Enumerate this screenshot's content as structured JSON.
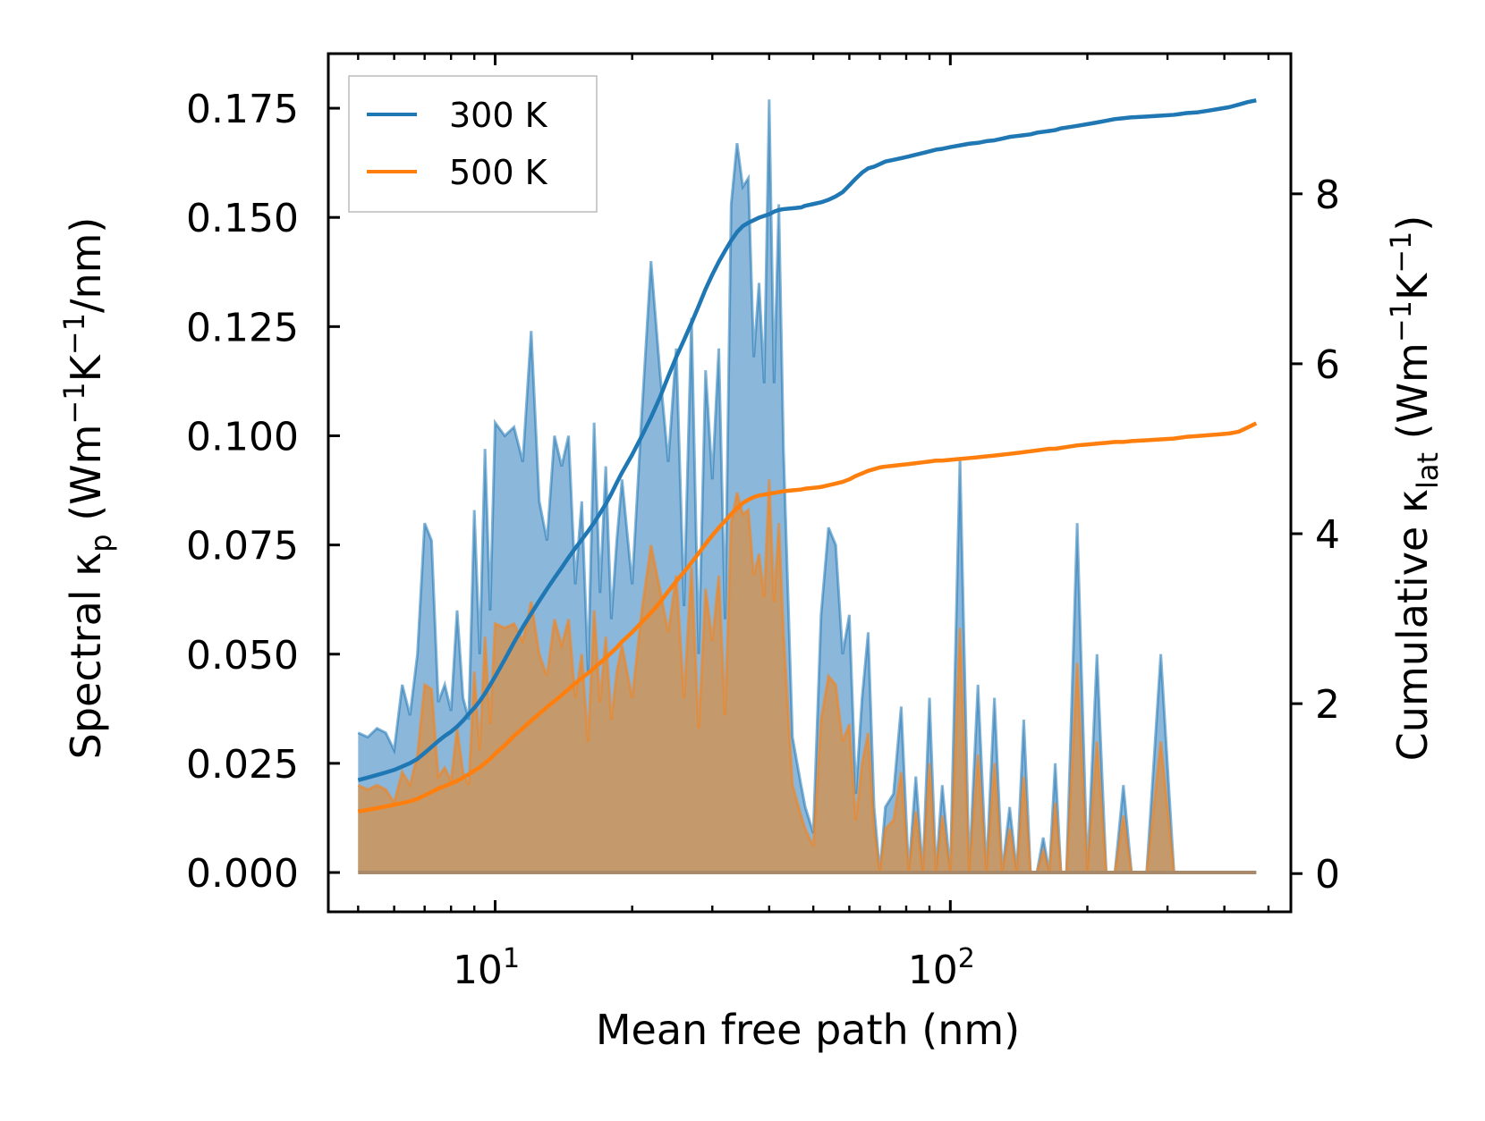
{
  "chart_data": {
    "type": "area-line-dual-axis",
    "title": "",
    "xlabel": "Mean free path (nm)",
    "ylabel_left_parts": [
      "Spectral κ",
      "p",
      " (Wm",
      "−1",
      "K",
      "−1",
      "/nm)"
    ],
    "ylabel_right_parts": [
      "Cumulative κ",
      "lat",
      " (Wm",
      "−1",
      "K",
      "−1",
      ")"
    ],
    "x_scale": "log",
    "xlim": [
      4.3,
      560
    ],
    "x_major_ticks": [
      {
        "value": 10,
        "base": "10",
        "exp": "1"
      },
      {
        "value": 100,
        "base": "10",
        "exp": "2"
      }
    ],
    "x_minor_ticks": [
      5,
      6,
      7,
      8,
      9,
      20,
      30,
      40,
      50,
      60,
      70,
      80,
      90,
      200,
      300,
      400,
      500
    ],
    "ylim_left": [
      -0.009,
      0.1875
    ],
    "y_left_ticks": [
      "0.000",
      "0.025",
      "0.050",
      "0.075",
      "0.100",
      "0.125",
      "0.150",
      "0.175"
    ],
    "ylim_right": [
      -0.45,
      9.65
    ],
    "y_right_ticks": [
      "0",
      "2",
      "4",
      "6",
      "8"
    ],
    "legend": {
      "position": "top-left",
      "entries": [
        "300 K",
        "500 K"
      ]
    },
    "colors": {
      "300K": "#1f77b4",
      "500K": "#ff7f0e",
      "fill_300K": "#8ab7da",
      "fill_500K": "#c4996b"
    },
    "x": [
      5.0,
      5.25,
      5.5,
      5.75,
      6.0,
      6.25,
      6.5,
      6.75,
      7.0,
      7.25,
      7.5,
      7.75,
      8.0,
      8.25,
      8.5,
      8.75,
      9.0,
      9.25,
      9.5,
      9.75,
      10.0,
      10.5,
      11.0,
      11.5,
      12.0,
      12.5,
      13.0,
      13.5,
      14.0,
      14.5,
      15.0,
      15.5,
      16.0,
      16.5,
      17.0,
      17.5,
      18.0,
      18.5,
      19.0,
      20.0,
      21.0,
      22.0,
      23.0,
      24.0,
      25.0,
      26.0,
      27.0,
      28.0,
      29.0,
      30.0,
      31.0,
      32.0,
      33.0,
      34.0,
      35.0,
      36.0,
      37.0,
      38.0,
      39.0,
      40.0,
      41.0,
      42.0,
      43.0,
      45.0,
      47.0,
      48.0,
      50.0,
      52.0,
      54.0,
      56.0,
      58.0,
      60.0,
      62.0,
      64.0,
      66.0,
      68.0,
      70.0,
      72.0,
      75.0,
      78.0,
      81.0,
      84.0,
      87.0,
      90.0,
      93.0,
      96.0,
      100.0,
      105.0,
      110.0,
      115.0,
      120.0,
      125.0,
      130.0,
      135.0,
      140.0,
      145.0,
      150.0,
      155.0,
      160.0,
      165.0,
      170.0,
      175.0,
      180.0,
      190.0,
      200.0,
      210.0,
      220.0,
      230.0,
      240.0,
      250.0,
      270.0,
      290.0,
      310.0,
      320.0,
      330.0,
      350.0,
      370.0,
      390.0,
      410.0,
      430.0,
      450.0,
      470.0
    ],
    "series": [
      {
        "name": "300 K",
        "spectral": [
          0.032,
          0.031,
          0.033,
          0.032,
          0.028,
          0.043,
          0.036,
          0.05,
          0.08,
          0.076,
          0.039,
          0.043,
          0.037,
          0.06,
          0.04,
          0.035,
          0.083,
          0.05,
          0.097,
          0.06,
          0.103,
          0.1,
          0.102,
          0.094,
          0.124,
          0.085,
          0.076,
          0.1,
          0.093,
          0.1,
          0.066,
          0.085,
          0.046,
          0.103,
          0.064,
          0.093,
          0.058,
          0.076,
          0.09,
          0.066,
          0.105,
          0.14,
          0.115,
          0.094,
          0.12,
          0.061,
          0.127,
          0.05,
          0.115,
          0.09,
          0.12,
          0.058,
          0.153,
          0.167,
          0.157,
          0.159,
          0.118,
          0.135,
          0.112,
          0.177,
          0.112,
          0.153,
          0.097,
          0.031,
          0.02,
          0.015,
          0.009,
          0.059,
          0.079,
          0.075,
          0.05,
          0.059,
          0.018,
          0.04,
          0.055,
          0.015,
          0.0,
          0.015,
          0.018,
          0.038,
          0.0,
          0.022,
          0.0,
          0.04,
          0.0,
          0.02,
          0.0,
          0.095,
          0.0,
          0.043,
          0.0,
          0.04,
          0.0,
          0.015,
          0.0,
          0.035,
          0.0,
          0.0,
          0.008,
          0.0,
          0.025,
          0.0,
          0.0,
          0.08,
          0.0,
          0.05,
          0.0,
          0.0,
          0.02,
          0.0,
          0.0,
          0.05,
          0.0,
          0.0,
          0.0,
          0.0,
          0.0,
          0.0,
          0.0,
          0.0,
          0.0,
          0.0
        ],
        "cumulative": [
          1.1,
          1.13,
          1.16,
          1.19,
          1.22,
          1.26,
          1.3,
          1.35,
          1.42,
          1.49,
          1.56,
          1.62,
          1.67,
          1.73,
          1.8,
          1.88,
          1.95,
          2.03,
          2.12,
          2.22,
          2.32,
          2.52,
          2.72,
          2.9,
          3.06,
          3.21,
          3.35,
          3.48,
          3.6,
          3.72,
          3.83,
          3.93,
          4.03,
          4.13,
          4.24,
          4.35,
          4.47,
          4.6,
          4.72,
          4.93,
          5.15,
          5.37,
          5.6,
          5.85,
          6.08,
          6.28,
          6.48,
          6.68,
          6.88,
          7.05,
          7.2,
          7.33,
          7.45,
          7.55,
          7.62,
          7.66,
          7.69,
          7.72,
          7.74,
          7.76,
          7.79,
          7.81,
          7.82,
          7.83,
          7.84,
          7.86,
          7.88,
          7.9,
          7.93,
          7.97,
          8.02,
          8.1,
          8.18,
          8.25,
          8.3,
          8.32,
          8.35,
          8.38,
          8.4,
          8.42,
          8.44,
          8.46,
          8.48,
          8.5,
          8.52,
          8.53,
          8.55,
          8.57,
          8.59,
          8.6,
          8.62,
          8.63,
          8.65,
          8.67,
          8.68,
          8.69,
          8.7,
          8.72,
          8.73,
          8.74,
          8.75,
          8.77,
          8.78,
          8.8,
          8.82,
          8.84,
          8.86,
          8.88,
          8.89,
          8.9,
          8.91,
          8.92,
          8.93,
          8.94,
          8.95,
          8.96,
          8.98,
          9.0,
          9.02,
          9.05,
          9.08,
          9.1
        ]
      },
      {
        "name": "500 K",
        "spectral": [
          0.02,
          0.019,
          0.02,
          0.019,
          0.016,
          0.023,
          0.02,
          0.027,
          0.043,
          0.042,
          0.022,
          0.024,
          0.021,
          0.033,
          0.023,
          0.02,
          0.046,
          0.028,
          0.054,
          0.034,
          0.057,
          0.056,
          0.057,
          0.053,
          0.062,
          0.05,
          0.045,
          0.058,
          0.052,
          0.058,
          0.04,
          0.05,
          0.03,
          0.06,
          0.039,
          0.054,
          0.035,
          0.046,
          0.052,
          0.04,
          0.06,
          0.075,
          0.065,
          0.055,
          0.068,
          0.04,
          0.07,
          0.033,
          0.065,
          0.053,
          0.068,
          0.036,
          0.08,
          0.087,
          0.082,
          0.083,
          0.068,
          0.073,
          0.063,
          0.09,
          0.062,
          0.08,
          0.055,
          0.02,
          0.013,
          0.01,
          0.006,
          0.035,
          0.045,
          0.043,
          0.03,
          0.034,
          0.012,
          0.025,
          0.032,
          0.01,
          0.0,
          0.01,
          0.012,
          0.023,
          0.0,
          0.014,
          0.0,
          0.025,
          0.0,
          0.013,
          0.0,
          0.056,
          0.0,
          0.027,
          0.0,
          0.025,
          0.0,
          0.01,
          0.0,
          0.022,
          0.0,
          0.0,
          0.005,
          0.0,
          0.016,
          0.0,
          0.0,
          0.048,
          0.0,
          0.03,
          0.0,
          0.0,
          0.013,
          0.0,
          0.0,
          0.03,
          0.0,
          0.0,
          0.0,
          0.0,
          0.0,
          0.0,
          0.0,
          0.0,
          0.0,
          0.0
        ],
        "cumulative": [
          0.73,
          0.75,
          0.77,
          0.79,
          0.81,
          0.83,
          0.85,
          0.88,
          0.92,
          0.96,
          1.0,
          1.03,
          1.06,
          1.09,
          1.13,
          1.17,
          1.21,
          1.25,
          1.3,
          1.35,
          1.41,
          1.51,
          1.62,
          1.71,
          1.8,
          1.88,
          1.96,
          2.03,
          2.1,
          2.17,
          2.24,
          2.3,
          2.36,
          2.42,
          2.48,
          2.54,
          2.6,
          2.66,
          2.73,
          2.84,
          2.96,
          3.07,
          3.19,
          3.32,
          3.44,
          3.55,
          3.66,
          3.77,
          3.88,
          3.98,
          4.07,
          4.15,
          4.23,
          4.3,
          4.36,
          4.4,
          4.43,
          4.45,
          4.46,
          4.47,
          4.48,
          4.49,
          4.5,
          4.51,
          4.52,
          4.53,
          4.54,
          4.55,
          4.57,
          4.59,
          4.61,
          4.64,
          4.68,
          4.71,
          4.74,
          4.76,
          4.78,
          4.79,
          4.8,
          4.81,
          4.82,
          4.83,
          4.84,
          4.85,
          4.86,
          4.86,
          4.87,
          4.88,
          4.89,
          4.9,
          4.91,
          4.92,
          4.93,
          4.94,
          4.95,
          4.96,
          4.97,
          4.98,
          4.99,
          5.0,
          5.0,
          5.01,
          5.02,
          5.04,
          5.05,
          5.06,
          5.07,
          5.08,
          5.08,
          5.09,
          5.1,
          5.11,
          5.12,
          5.13,
          5.14,
          5.15,
          5.16,
          5.17,
          5.18,
          5.2,
          5.25,
          5.3
        ]
      }
    ]
  }
}
